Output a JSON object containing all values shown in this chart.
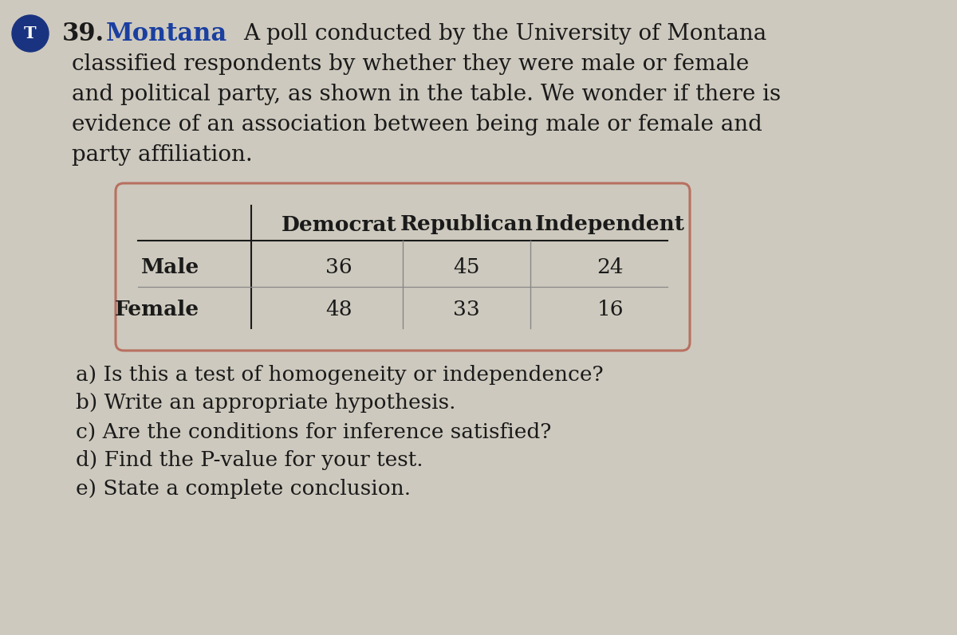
{
  "background_color": "#cdc9be",
  "problem_number": "39.",
  "problem_label": "Montana",
  "label_color": "#1a3fa0",
  "circle_color": "#1a3380",
  "circle_letter": "T",
  "main_text_lines": [
    "A poll conducted by the University of Montana",
    "classified respondents by whether they were male or female",
    "and political party, as shown in the table. We wonder if there is",
    "evidence of an association between being male or female and",
    "party affiliation."
  ],
  "table_col_headers": [
    "Democrat",
    "Republican",
    "Independent"
  ],
  "table_row_headers": [
    "Male",
    "Female"
  ],
  "table_data": [
    [
      36,
      45,
      24
    ],
    [
      48,
      33,
      16
    ]
  ],
  "table_border_color": "#b87060",
  "questions": [
    "a) Is this a test of homogeneity or independence?",
    "b) Write an appropriate hypothesis.",
    "c) Are the conditions for inference satisfied?",
    "d) Find the P-value for your test.",
    "e) State a complete conclusion."
  ],
  "text_color": "#1a1a1a",
  "font_size_main": 20,
  "font_size_table": 19,
  "font_size_questions": 19,
  "fig_width": 12.0,
  "fig_height": 7.97,
  "dpi": 100
}
